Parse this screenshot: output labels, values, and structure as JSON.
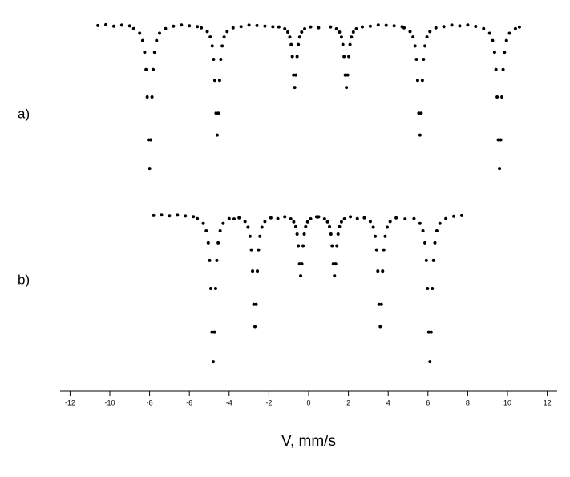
{
  "chart_data": [
    {
      "type": "scatter",
      "label": "a)",
      "color": "#000000",
      "xlim": [
        -12.5,
        12.5
      ],
      "ylim": [
        90,
        101
      ],
      "x": [
        -10.6,
        -10.2,
        -9.8,
        -9.4,
        -9.0,
        -8.8,
        -8.5,
        -8.35,
        -8.25,
        -8.18,
        -8.12,
        -8.06,
        -8,
        -7.94,
        -7.88,
        -7.82,
        -7.75,
        -7.65,
        -7.5,
        -7.2,
        -6.8,
        -6.4,
        -6.0,
        -5.6,
        -5.4,
        -5.1,
        -4.95,
        -4.85,
        -4.78,
        -4.72,
        -4.66,
        -4.6,
        -4.54,
        -4.48,
        -4.42,
        -4.35,
        -4.25,
        -4.1,
        -3.8,
        -3.4,
        -3.0,
        -2.6,
        -2.2,
        -1.8,
        -1.5,
        -1.2,
        -1.05,
        -0.95,
        -0.88,
        -0.82,
        -0.76,
        -0.7,
        -0.64,
        -0.58,
        -0.52,
        -0.45,
        -0.35,
        -0.2,
        0.1,
        0.5,
        1.1,
        1.4,
        1.55,
        1.65,
        1.72,
        1.78,
        1.84,
        1.9,
        1.96,
        2.02,
        2.08,
        2.15,
        2.25,
        2.4,
        2.7,
        3.1,
        3.5,
        3.9,
        4.3,
        4.7,
        4.8,
        5.1,
        5.25,
        5.35,
        5.42,
        5.48,
        5.54,
        5.6,
        5.66,
        5.72,
        5.78,
        5.85,
        5.95,
        6.1,
        6.4,
        6.8,
        7.2,
        7.6,
        8.0,
        8.4,
        8.8,
        9.1,
        9.25,
        9.35,
        9.42,
        9.48,
        9.54,
        9.6,
        9.66,
        9.72,
        9.78,
        9.85,
        9.95,
        10.1,
        10.4,
        10.6
      ],
      "values": [
        100,
        100.05,
        99.95,
        100.02,
        99.97,
        99.8,
        99.51,
        99.05,
        98.32,
        97.23,
        95.5,
        92.8,
        91,
        92.8,
        95.5,
        97.23,
        98.32,
        99.05,
        99.51,
        99.8,
        99.95,
        100.03,
        99.98,
        99.93,
        99.85,
        99.62,
        99.28,
        98.71,
        97.87,
        96.55,
        94.48,
        93.1,
        94.48,
        96.55,
        97.87,
        98.71,
        99.28,
        99.62,
        99.85,
        99.93,
        100.02,
        100,
        99.96,
        99.92,
        99.91,
        99.79,
        99.59,
        99.27,
        98.8,
        98.05,
        96.88,
        96.1,
        96.88,
        98.05,
        98.8,
        99.27,
        99.59,
        99.79,
        99.91,
        99.86,
        99.91,
        99.79,
        99.59,
        99.27,
        98.8,
        98.05,
        96.88,
        96.1,
        96.88,
        98.05,
        98.8,
        99.27,
        99.59,
        99.79,
        99.91,
        99.95,
        100.03,
        100.01,
        99.98,
        99.92,
        99.85,
        99.62,
        99.28,
        98.71,
        97.87,
        96.55,
        94.48,
        93.1,
        94.48,
        96.55,
        97.87,
        98.71,
        99.28,
        99.62,
        99.85,
        99.93,
        100.02,
        99.97,
        100.03,
        99.94,
        99.8,
        99.51,
        99.05,
        98.32,
        97.23,
        95.5,
        92.8,
        91,
        92.8,
        95.5,
        97.23,
        98.32,
        99.05,
        99.51,
        99.8,
        99.9
      ]
    },
    {
      "type": "scatter",
      "label": "b)",
      "color": "#000000",
      "xlim": [
        -12.5,
        12.5
      ],
      "ylim": [
        90,
        101
      ],
      "xticks": [
        -12,
        -10,
        -8,
        -6,
        -4,
        -2,
        0,
        2,
        4,
        6,
        8,
        10,
        12
      ],
      "xlabel": "V, mm/s",
      "x": [
        -7.8,
        -7.4,
        -7.0,
        -6.6,
        -6.2,
        -5.8,
        -5.6,
        -5.3,
        -5.15,
        -5.05,
        -4.98,
        -4.92,
        -4.86,
        -4.8,
        -4.74,
        -4.68,
        -4.62,
        -4.55,
        -4.45,
        -4.3,
        -4.0,
        -3.75,
        -3.5,
        -3.2,
        -3.05,
        -2.95,
        -2.88,
        -2.82,
        -2.76,
        -2.7,
        -2.64,
        -2.58,
        -2.52,
        -2.45,
        -2.35,
        -2.2,
        -1.9,
        -1.55,
        -1.2,
        -0.9,
        -0.75,
        -0.65,
        -0.58,
        -0.52,
        -0.46,
        -0.4,
        -0.34,
        -0.28,
        -0.22,
        -0.15,
        -0.05,
        0.1,
        0.4,
        0.45,
        0.5,
        0.8,
        0.95,
        1.05,
        1.12,
        1.18,
        1.24,
        1.3,
        1.36,
        1.42,
        1.48,
        1.55,
        1.65,
        1.8,
        2.1,
        2.45,
        2.8,
        3.1,
        3.25,
        3.35,
        3.42,
        3.48,
        3.54,
        3.6,
        3.66,
        3.72,
        3.78,
        3.85,
        3.95,
        4.1,
        4.4,
        4.85,
        5.3,
        5.6,
        5.75,
        5.85,
        5.92,
        5.98,
        6.04,
        6.1,
        6.16,
        6.22,
        6.28,
        6.35,
        6.45,
        6.6,
        6.9,
        7.3,
        7.7
      ],
      "values": [
        100,
        100.03,
        99.98,
        100.02,
        99.97,
        99.93,
        99.8,
        99.5,
        99.03,
        98.28,
        97.17,
        95.4,
        92.64,
        90.8,
        92.64,
        95.4,
        97.17,
        98.28,
        99.03,
        99.5,
        99.8,
        99.78,
        99.85,
        99.62,
        99.26,
        98.69,
        97.84,
        96.5,
        94.4,
        93,
        94.4,
        96.5,
        97.84,
        98.69,
        99.26,
        99.62,
        99.85,
        99.8,
        99.92,
        99.79,
        99.6,
        99.29,
        98.83,
        98.1,
        96.96,
        96.2,
        96.96,
        98.1,
        98.83,
        99.29,
        99.6,
        99.79,
        99.92,
        99.9,
        99.92,
        99.79,
        99.6,
        99.29,
        98.83,
        98.1,
        96.96,
        96.2,
        96.96,
        98.1,
        98.83,
        99.29,
        99.6,
        99.79,
        99.92,
        99.8,
        99.85,
        99.62,
        99.26,
        98.69,
        97.84,
        96.5,
        94.4,
        93,
        94.4,
        96.5,
        97.84,
        98.69,
        99.26,
        99.62,
        99.85,
        99.78,
        99.8,
        99.5,
        99.03,
        98.28,
        97.17,
        95.4,
        92.64,
        90.8,
        92.64,
        95.4,
        97.17,
        98.28,
        99.03,
        99.5,
        99.8,
        99.95,
        100
      ]
    }
  ]
}
